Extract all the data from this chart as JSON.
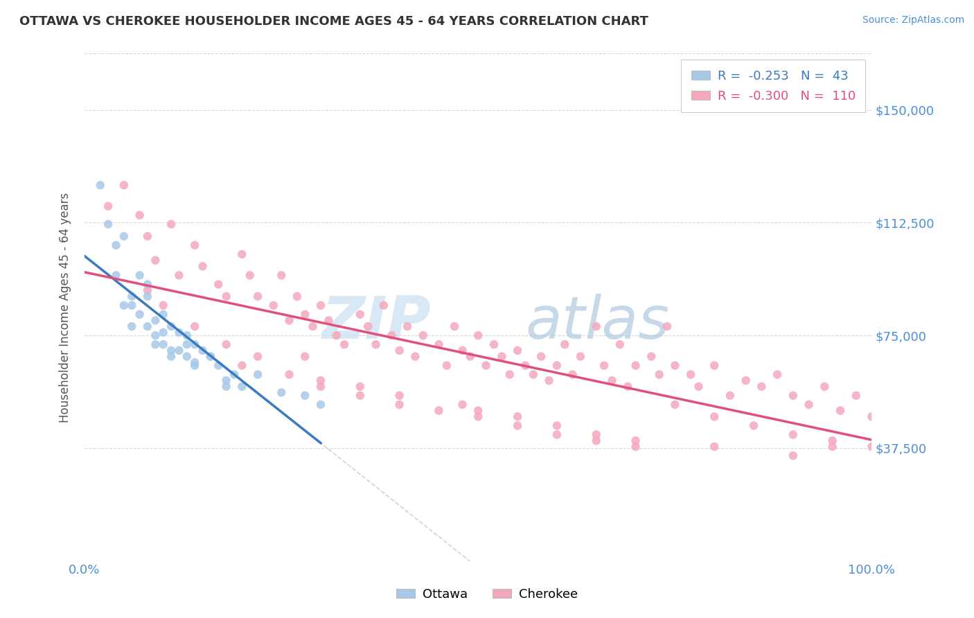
{
  "title": "OTTAWA VS CHEROKEE HOUSEHOLDER INCOME AGES 45 - 64 YEARS CORRELATION CHART",
  "source_text": "Source: ZipAtlas.com",
  "ylabel": "Householder Income Ages 45 - 64 years",
  "xlim": [
    0.0,
    100.0
  ],
  "ylim": [
    0,
    168750
  ],
  "yticks": [
    0,
    37500,
    75000,
    112500,
    150000
  ],
  "ytick_labels": [
    "",
    "$37,500",
    "$75,000",
    "$112,500",
    "$150,000"
  ],
  "ottawa_color": "#a8c8e8",
  "cherokee_color": "#f5a8bc",
  "ottawa_line_color": "#3a7abf",
  "cherokee_line_color": "#e0507a",
  "ref_line_color": "#c8c8c8",
  "legend_r_ottawa": "-0.253",
  "legend_n_ottawa": "43",
  "legend_r_cherokee": "-0.300",
  "legend_n_cherokee": "110",
  "ottawa_x": [
    2,
    3,
    4,
    5,
    5,
    6,
    7,
    7,
    8,
    8,
    9,
    9,
    10,
    10,
    11,
    11,
    12,
    12,
    13,
    13,
    14,
    14,
    15,
    16,
    17,
    18,
    20,
    22,
    25,
    28,
    30,
    4,
    6,
    8,
    10,
    13,
    16,
    19,
    6,
    9,
    11,
    14,
    18
  ],
  "ottawa_y": [
    125000,
    112000,
    95000,
    108000,
    85000,
    88000,
    82000,
    95000,
    78000,
    92000,
    80000,
    75000,
    82000,
    72000,
    78000,
    68000,
    76000,
    70000,
    75000,
    68000,
    72000,
    65000,
    70000,
    68000,
    65000,
    60000,
    58000,
    62000,
    56000,
    55000,
    52000,
    105000,
    85000,
    88000,
    76000,
    72000,
    68000,
    62000,
    78000,
    72000,
    70000,
    66000,
    58000
  ],
  "cherokee_x": [
    3,
    5,
    7,
    8,
    9,
    11,
    12,
    14,
    15,
    17,
    18,
    20,
    21,
    22,
    24,
    25,
    26,
    27,
    28,
    29,
    30,
    31,
    32,
    33,
    35,
    36,
    37,
    38,
    39,
    40,
    41,
    42,
    43,
    45,
    46,
    47,
    48,
    49,
    50,
    51,
    52,
    53,
    54,
    55,
    56,
    57,
    58,
    59,
    60,
    61,
    62,
    63,
    65,
    66,
    67,
    68,
    69,
    70,
    72,
    73,
    74,
    75,
    77,
    78,
    80,
    82,
    84,
    86,
    88,
    90,
    92,
    94,
    96,
    98,
    100,
    8,
    10,
    14,
    18,
    22,
    26,
    30,
    35,
    40,
    45,
    50,
    55,
    60,
    65,
    70,
    75,
    80,
    85,
    90,
    95,
    100,
    20,
    30,
    40,
    50,
    60,
    70,
    80,
    90,
    28,
    35,
    48,
    55,
    65,
    95
  ],
  "cherokee_y": [
    118000,
    125000,
    115000,
    108000,
    100000,
    112000,
    95000,
    105000,
    98000,
    92000,
    88000,
    102000,
    95000,
    88000,
    85000,
    95000,
    80000,
    88000,
    82000,
    78000,
    85000,
    80000,
    75000,
    72000,
    82000,
    78000,
    72000,
    85000,
    75000,
    70000,
    78000,
    68000,
    75000,
    72000,
    65000,
    78000,
    70000,
    68000,
    75000,
    65000,
    72000,
    68000,
    62000,
    70000,
    65000,
    62000,
    68000,
    60000,
    65000,
    72000,
    62000,
    68000,
    78000,
    65000,
    60000,
    72000,
    58000,
    65000,
    68000,
    62000,
    78000,
    65000,
    62000,
    58000,
    65000,
    55000,
    60000,
    58000,
    62000,
    55000,
    52000,
    58000,
    50000,
    55000,
    48000,
    90000,
    85000,
    78000,
    72000,
    68000,
    62000,
    58000,
    55000,
    52000,
    50000,
    48000,
    45000,
    42000,
    40000,
    38000,
    52000,
    48000,
    45000,
    42000,
    40000,
    38000,
    65000,
    60000,
    55000,
    50000,
    45000,
    40000,
    38000,
    35000,
    68000,
    58000,
    52000,
    48000,
    42000,
    38000
  ],
  "watermark_zip_color": "#c8dff0",
  "watermark_atlas_color": "#b0c8e0"
}
